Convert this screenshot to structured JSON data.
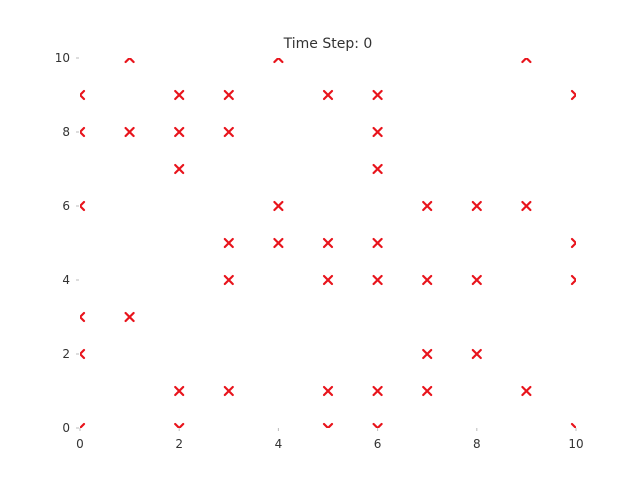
{
  "chart_data": {
    "type": "scatter",
    "title": "Time Step: 0",
    "xlabel": "",
    "ylabel": "",
    "xlim": [
      0,
      10
    ],
    "ylim": [
      0,
      10
    ],
    "xticks": [
      "0",
      "2",
      "4",
      "6",
      "8",
      "10"
    ],
    "yticks": [
      "0",
      "2",
      "4",
      "6",
      "8",
      "10"
    ],
    "marker": "x",
    "marker_color": "#e8141c",
    "grid": false,
    "axis_lines": false,
    "points": [
      [
        0,
        0
      ],
      [
        2,
        0
      ],
      [
        5,
        0
      ],
      [
        6,
        0
      ],
      [
        10,
        0
      ],
      [
        2,
        1
      ],
      [
        3,
        1
      ],
      [
        5,
        1
      ],
      [
        6,
        1
      ],
      [
        7,
        1
      ],
      [
        9,
        1
      ],
      [
        0,
        2
      ],
      [
        7,
        2
      ],
      [
        8,
        2
      ],
      [
        0,
        3
      ],
      [
        1,
        3
      ],
      [
        3,
        4
      ],
      [
        5,
        4
      ],
      [
        6,
        4
      ],
      [
        7,
        4
      ],
      [
        8,
        4
      ],
      [
        10,
        4
      ],
      [
        3,
        5
      ],
      [
        4,
        5
      ],
      [
        5,
        5
      ],
      [
        6,
        5
      ],
      [
        10,
        5
      ],
      [
        0,
        6
      ],
      [
        4,
        6
      ],
      [
        7,
        6
      ],
      [
        8,
        6
      ],
      [
        9,
        6
      ],
      [
        2,
        7
      ],
      [
        6,
        7
      ],
      [
        0,
        8
      ],
      [
        1,
        8
      ],
      [
        2,
        8
      ],
      [
        3,
        8
      ],
      [
        6,
        8
      ],
      [
        0,
        9
      ],
      [
        2,
        9
      ],
      [
        3,
        9
      ],
      [
        5,
        9
      ],
      [
        6,
        9
      ],
      [
        10,
        9
      ],
      [
        1,
        10
      ],
      [
        4,
        10
      ],
      [
        9,
        10
      ]
    ]
  }
}
